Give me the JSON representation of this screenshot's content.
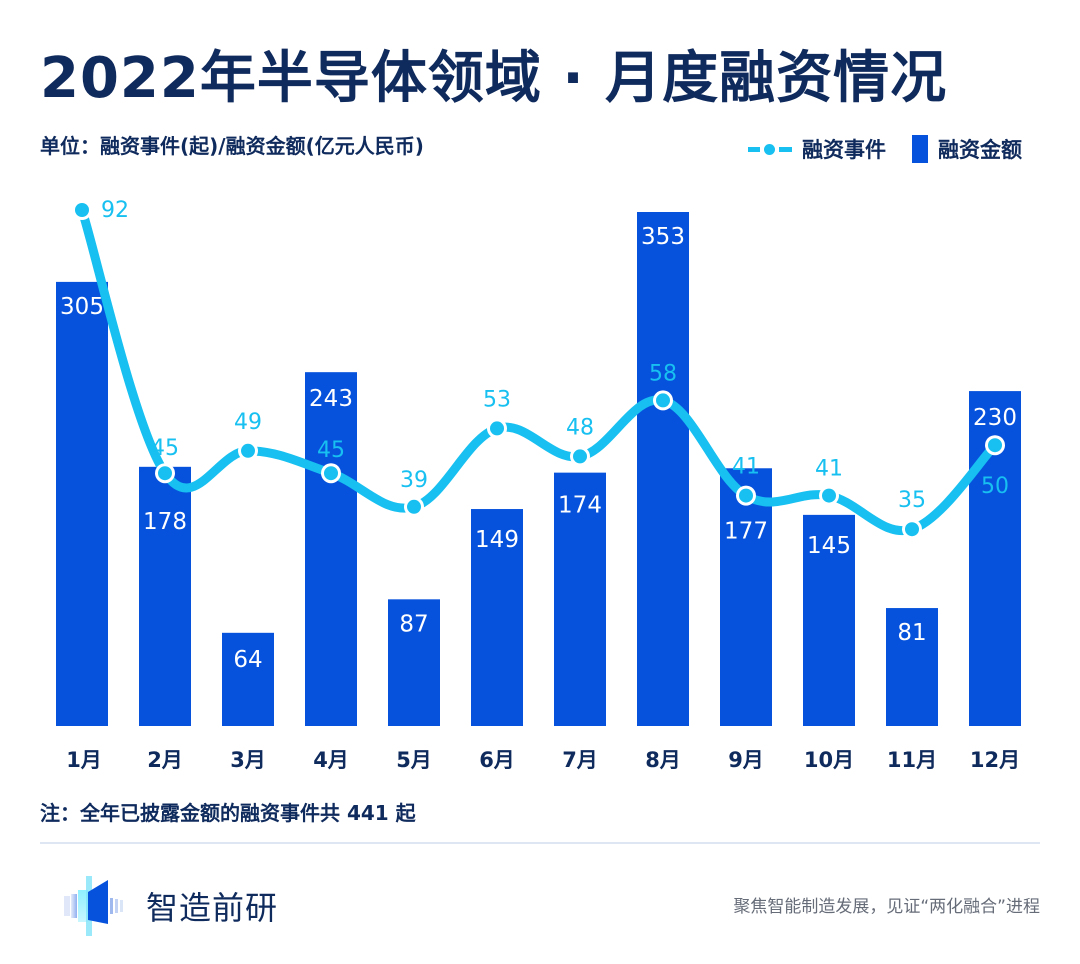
{
  "title": "2022年半导体领域 · 月度融资情况",
  "unit_label": "单位：融资事件(起)/融资金额(亿元人民币)",
  "legend": {
    "line_label": "融资事件",
    "bar_label": "融资金额"
  },
  "colors": {
    "bar": "#0652dd",
    "line": "#17c0f0",
    "title": "#0f2a5c",
    "bar_label": "#ffffff"
  },
  "chart_data": {
    "type": "bar",
    "title": "2022年半导体领域 · 月度融资情况",
    "xlabel": "",
    "ylabel": "融资事件(起)/融资金额(亿元人民币)",
    "categories": [
      "1月",
      "2月",
      "3月",
      "4月",
      "5月",
      "6月",
      "7月",
      "8月",
      "9月",
      "10月",
      "11月",
      "12月"
    ],
    "series": [
      {
        "name": "融资金额",
        "type": "bar",
        "values": [
          305,
          178,
          64,
          243,
          87,
          149,
          174,
          353,
          177,
          145,
          81,
          230
        ]
      },
      {
        "name": "融资事件",
        "type": "line",
        "smooth": true,
        "values": [
          92,
          45,
          49,
          45,
          39,
          53,
          48,
          58,
          41,
          41,
          35,
          50
        ]
      }
    ],
    "legend_position": "top-right",
    "grid": false
  },
  "note": "注：全年已披露金额的融资事件共 441 起",
  "footer": {
    "brand": "智造前研",
    "slogan": "聚焦智能制造发展，见证“两化融合”进程"
  }
}
